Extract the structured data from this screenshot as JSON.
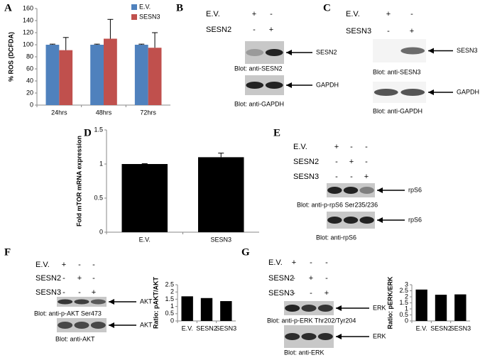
{
  "panel_letters": [
    "A",
    "B",
    "C",
    "D",
    "E",
    "F",
    "G"
  ],
  "chart_data": [
    {
      "type": "bar",
      "ylabel": "% ROS (DCFDA)",
      "categories": [
        "24hrs",
        "48hrs",
        "72hrs"
      ],
      "series": [
        {
          "name": "E.V.",
          "color": "#4f81bd",
          "values": [
            100,
            100,
            100
          ],
          "errors": [
            1,
            1,
            1
          ]
        },
        {
          "name": "SESN3",
          "color": "#c0504d",
          "values": [
            91,
            110,
            95
          ],
          "errors": [
            21,
            32,
            25
          ]
        }
      ],
      "ylim": [
        0,
        160
      ],
      "yticks": [
        0,
        20,
        40,
        60,
        80,
        100,
        120,
        140,
        160
      ],
      "legend": "top-right"
    },
    {
      "type": "bar",
      "ylabel": "Fold mTOR mRNA expression",
      "categories": [
        "E.V.",
        "SESN3"
      ],
      "values": [
        1.0,
        1.1
      ],
      "errors": [
        0.005,
        0.06
      ],
      "color": "#000000",
      "ylim": [
        0,
        1.5
      ],
      "yticks": [
        0,
        0.5,
        1,
        1.5
      ]
    },
    {
      "type": "bar",
      "ylabel": "Ratio: pAKT/AKT",
      "categories": [
        "E.V.",
        "SESN2",
        "SESN3"
      ],
      "values": [
        1.7,
        1.58,
        1.37
      ],
      "color": "#000000",
      "ylim": [
        0,
        2.5
      ],
      "yticks": [
        0,
        0.5,
        1,
        1.5,
        2,
        2.5
      ]
    },
    {
      "type": "bar",
      "ylabel": "Ratio: pERK/ERK",
      "categories": [
        "E.V.",
        "SESN2",
        "SESN3"
      ],
      "values": [
        2.6,
        2.17,
        2.2
      ],
      "color": "#000000",
      "ylim": [
        0,
        3
      ],
      "yticks": [
        0,
        0.5,
        1,
        1.5,
        2,
        2.5,
        3
      ]
    }
  ],
  "blots": [
    {
      "rows": [
        {
          "label": "E.V.",
          "signs": [
            "+",
            "-"
          ]
        },
        {
          "label": "SESN2",
          "signs": [
            "-",
            "+"
          ]
        }
      ],
      "blots": [
        {
          "target": "SESN2",
          "caption": "Blot: anti-SESN2"
        },
        {
          "target": "GAPDH",
          "caption": "Blot: anti-GAPDH"
        }
      ]
    },
    {
      "rows": [
        {
          "label": "E.V.",
          "signs": [
            "+",
            "-"
          ]
        },
        {
          "label": "SESN3",
          "signs": [
            "-",
            "+"
          ]
        }
      ],
      "blots": [
        {
          "target": "SESN3",
          "caption": "Blot: anti-SESN3"
        },
        {
          "target": "GAPDH",
          "caption": "Blot: anti-GAPDH"
        }
      ]
    },
    {
      "rows": [
        {
          "label": "E.V.",
          "signs": [
            "+",
            "-",
            "-"
          ]
        },
        {
          "label": "SESN2",
          "signs": [
            "-",
            "+",
            "-"
          ]
        },
        {
          "label": "SESN3",
          "signs": [
            "-",
            "-",
            "+"
          ]
        }
      ],
      "blots": [
        {
          "target": "rpS6",
          "caption": "Blot: anti-p-rpS6 Ser235/236"
        },
        {
          "target": "rpS6",
          "caption": "Blot: anti-rpS6"
        }
      ]
    },
    {
      "rows": [
        {
          "label": "E.V.",
          "signs": [
            "+",
            "-",
            "-"
          ]
        },
        {
          "label": "SESN2",
          "signs": [
            "-",
            "+",
            "-"
          ]
        },
        {
          "label": "SESN3",
          "signs": [
            "-",
            "-",
            "+"
          ]
        }
      ],
      "blots": [
        {
          "target": "AKT",
          "caption": "Blot: anti-p-AKT Ser473"
        },
        {
          "target": "AKT",
          "caption": "Blot: anti-AKT"
        }
      ]
    },
    {
      "rows": [
        {
          "label": "E.V.",
          "signs": [
            "+",
            "-",
            "-"
          ]
        },
        {
          "label": "SESN2",
          "signs": [
            "-",
            "+",
            "-"
          ]
        },
        {
          "label": "SESN3",
          "signs": [
            "-",
            "-",
            "+"
          ]
        }
      ],
      "blots": [
        {
          "target": "ERK",
          "caption": "Blot: anti-p-ERK Thr202/Tyr204"
        },
        {
          "target": "ERK",
          "caption": "Blot: anti-ERK"
        }
      ]
    }
  ]
}
